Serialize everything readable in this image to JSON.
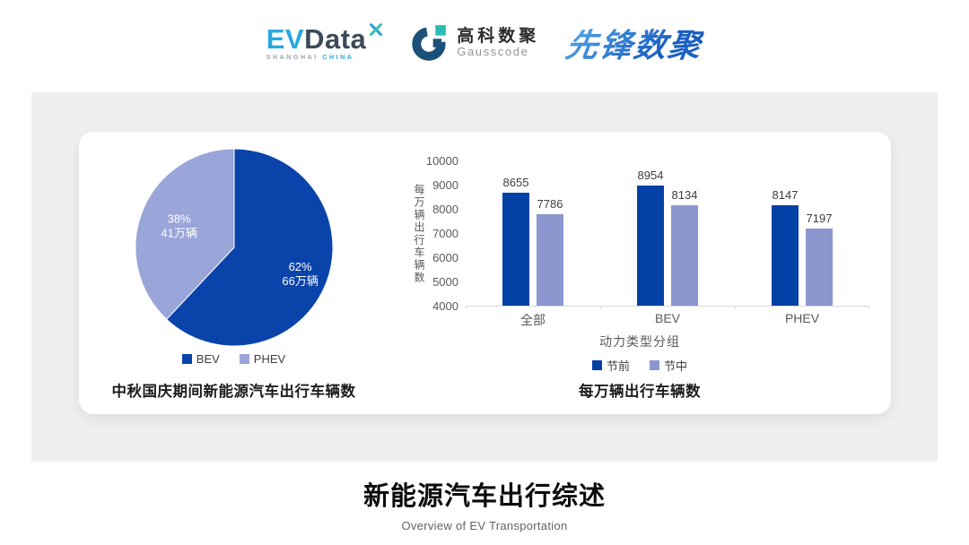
{
  "header": {
    "evdata": {
      "ev": "EV",
      "data": "Data",
      "sub_left": "SHANGHAI",
      "sub_right": "CHINA"
    },
    "gausscode": {
      "cn": "高科数聚",
      "en": "Gausscode"
    },
    "pioneer": {
      "text": "先锋数聚"
    }
  },
  "chart_data": [
    {
      "type": "pie",
      "title": "中秋国庆期间新能源汽车出行车辆数",
      "labels": [
        "BEV",
        "PHEV"
      ],
      "values": [
        62,
        38
      ],
      "values_abs": [
        "66万辆",
        "41万辆"
      ],
      "slice_labels": [
        [
          "62%",
          "66万辆"
        ],
        [
          "38%",
          "41万辆"
        ]
      ],
      "colors": [
        "#0a44aa",
        "#9aa5d9"
      ],
      "legend_position": "bottom"
    },
    {
      "type": "bar",
      "title": "每万辆出行车辆数",
      "categories": [
        "全部",
        "BEV",
        "PHEV"
      ],
      "series": [
        {
          "name": "节前",
          "values": [
            8655,
            8954,
            8147
          ],
          "color": "#0341a6"
        },
        {
          "name": "节中",
          "values": [
            7786,
            8134,
            7197
          ],
          "color": "#8b97ce"
        }
      ],
      "xlabel": "动力类型分组",
      "ylabel": "每万辆出行车辆数",
      "ylim": [
        4000,
        10000
      ],
      "yticks": [
        4000,
        5000,
        6000,
        7000,
        8000,
        9000,
        10000
      ],
      "grid": false,
      "legend_position": "bottom"
    }
  ],
  "footer": {
    "title": "新能源汽车出行综述",
    "subtitle": "Overview of EV Transportation"
  }
}
